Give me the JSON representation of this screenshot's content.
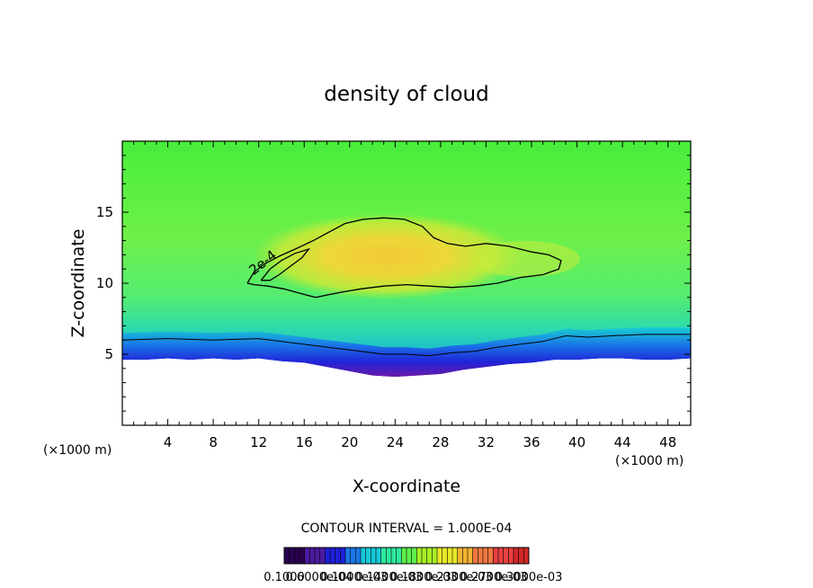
{
  "chart_data": {
    "type": "heatmap",
    "title": "density of cloud",
    "xlabel": "X-coordinate",
    "ylabel": "Z-coordinate",
    "x_unit": "(×1000 m)",
    "y_unit": "(×1000 m)",
    "xlim": [
      0,
      50
    ],
    "ylim": [
      0,
      20
    ],
    "x_ticks": [
      4,
      8,
      12,
      16,
      20,
      24,
      28,
      32,
      36,
      40,
      44,
      48
    ],
    "y_ticks": [
      5,
      10,
      15
    ],
    "contour_interval_text": "CONTOUR INTERVAL = 1.000E-04",
    "contour_label": "2e-4",
    "contour_level": 0.0002,
    "colorbar": {
      "labels": [
        "0.1000",
        "0.6000e-04",
        "0.1000e-03",
        "0.1400e-03",
        "0.1800e-03",
        "0.2300e-03",
        "0.2700e-03",
        "0.3000e-03"
      ],
      "colors": [
        "#2a0050",
        "#4b1a9e",
        "#1e20d8",
        "#1a78e8",
        "#18c8d8",
        "#30e8a0",
        "#5ef04c",
        "#a8f028",
        "#e8e82a",
        "#f4b432",
        "#f07840",
        "#e84040",
        "#d02828"
      ]
    },
    "ground_profile": [
      [
        0,
        4.6
      ],
      [
        2,
        4.6
      ],
      [
        4,
        4.7
      ],
      [
        6,
        4.6
      ],
      [
        8,
        4.7
      ],
      [
        10,
        4.6
      ],
      [
        12,
        4.7
      ],
      [
        14,
        4.5
      ],
      [
        16,
        4.4
      ],
      [
        18,
        4.1
      ],
      [
        20,
        3.8
      ],
      [
        22,
        3.5
      ],
      [
        24,
        3.4
      ],
      [
        26,
        3.5
      ],
      [
        28,
        3.6
      ],
      [
        30,
        3.9
      ],
      [
        32,
        4.1
      ],
      [
        34,
        4.3
      ],
      [
        36,
        4.4
      ],
      [
        38,
        4.6
      ],
      [
        40,
        4.6
      ],
      [
        42,
        4.7
      ],
      [
        44,
        4.7
      ],
      [
        46,
        4.6
      ],
      [
        48,
        4.6
      ],
      [
        50,
        4.7
      ]
    ],
    "low_contour": [
      [
        0,
        6.0
      ],
      [
        4,
        6.1
      ],
      [
        8,
        6.0
      ],
      [
        12,
        6.1
      ],
      [
        15,
        5.8
      ],
      [
        17,
        5.6
      ],
      [
        19,
        5.4
      ],
      [
        21,
        5.2
      ],
      [
        23,
        5.0
      ],
      [
        25,
        5.0
      ],
      [
        27,
        4.9
      ],
      [
        29,
        5.1
      ],
      [
        31,
        5.2
      ],
      [
        33,
        5.5
      ],
      [
        35,
        5.7
      ],
      [
        37,
        5.9
      ],
      [
        39,
        6.3
      ],
      [
        41,
        6.2
      ],
      [
        43,
        6.3
      ],
      [
        46,
        6.4
      ],
      [
        50,
        6.4
      ]
    ],
    "cloud_contour": [
      [
        11.0,
        10.0
      ],
      [
        11.6,
        10.8
      ],
      [
        12.6,
        11.4
      ],
      [
        13.8,
        11.9
      ],
      [
        15.2,
        12.4
      ],
      [
        16.8,
        13.0
      ],
      [
        18.2,
        13.6
      ],
      [
        19.6,
        14.2
      ],
      [
        21.2,
        14.5
      ],
      [
        23.0,
        14.6
      ],
      [
        24.8,
        14.5
      ],
      [
        26.4,
        14.0
      ],
      [
        27.4,
        13.2
      ],
      [
        28.6,
        12.8
      ],
      [
        30.2,
        12.6
      ],
      [
        32.0,
        12.8
      ],
      [
        34.0,
        12.6
      ],
      [
        36.0,
        12.2
      ],
      [
        37.5,
        12.0
      ],
      [
        38.6,
        11.6
      ],
      [
        38.4,
        11.0
      ],
      [
        37.0,
        10.6
      ],
      [
        35.0,
        10.4
      ],
      [
        33.0,
        10.0
      ],
      [
        31.0,
        9.8
      ],
      [
        29.0,
        9.7
      ],
      [
        27.0,
        9.8
      ],
      [
        25.0,
        9.9
      ],
      [
        23.0,
        9.8
      ],
      [
        21.0,
        9.6
      ],
      [
        19.5,
        9.4
      ],
      [
        18.2,
        9.2
      ],
      [
        17.0,
        9.0
      ],
      [
        15.6,
        9.3
      ],
      [
        14.2,
        9.6
      ],
      [
        12.8,
        9.8
      ],
      [
        11.6,
        9.9
      ],
      [
        11.0,
        10.0
      ]
    ],
    "inner_contour": [
      [
        12.2,
        10.2
      ],
      [
        13.0,
        11.0
      ],
      [
        14.0,
        11.6
      ],
      [
        15.2,
        12.1
      ],
      [
        16.4,
        12.4
      ],
      [
        15.8,
        11.8
      ],
      [
        14.8,
        11.2
      ],
      [
        13.8,
        10.6
      ],
      [
        13.0,
        10.2
      ],
      [
        12.2,
        10.2
      ]
    ]
  }
}
